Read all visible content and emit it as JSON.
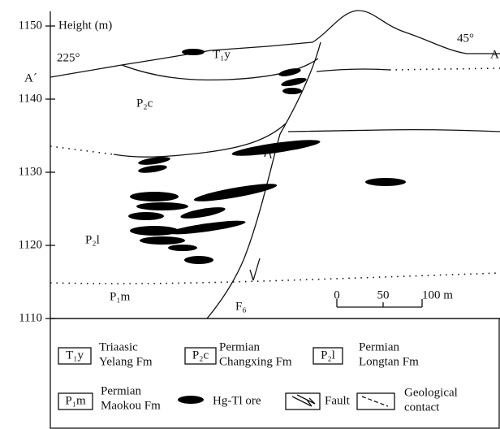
{
  "axis": {
    "title": "Height (m)",
    "ticks": [
      1110,
      1120,
      1130,
      1140,
      1150
    ]
  },
  "section": {
    "left_end": "A´",
    "right_end": "A",
    "left_azimuth": "225°",
    "right_azimuth": "45°",
    "units": [
      "T₁y",
      "P₂c",
      "P₂l",
      "P₁m"
    ],
    "fault": "F₆"
  },
  "scale_bar": {
    "ticks": [
      "0",
      "50",
      "100 m"
    ]
  },
  "legend": [
    {
      "symbol": "T₁y",
      "label": [
        "Triaasic",
        "Yelang Fm"
      ]
    },
    {
      "symbol": "P₂c",
      "label": [
        "Permian",
        "Changxing Fm"
      ]
    },
    {
      "symbol": "P₂l",
      "label": [
        "Permian",
        "Longtan Fm"
      ]
    },
    {
      "symbol": "P₁m",
      "label": [
        "Permian",
        "Maokou Fm"
      ]
    },
    {
      "label": [
        "Hg-Tl ore"
      ]
    },
    {
      "label": [
        "Fault"
      ]
    },
    {
      "label": [
        "Geological",
        "contact"
      ]
    }
  ]
}
